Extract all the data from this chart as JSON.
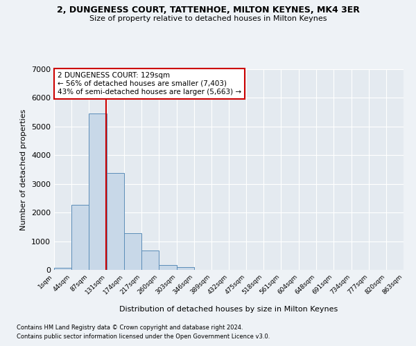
{
  "title1": "2, DUNGENESS COURT, TATTENHOE, MILTON KEYNES, MK4 3ER",
  "title2": "Size of property relative to detached houses in Milton Keynes",
  "xlabel": "Distribution of detached houses by size in Milton Keynes",
  "ylabel": "Number of detached properties",
  "footnote1": "Contains HM Land Registry data © Crown copyright and database right 2024.",
  "footnote2": "Contains public sector information licensed under the Open Government Licence v3.0.",
  "annotation_line1": "2 DUNGENESS COURT: 129sqm",
  "annotation_line2": "← 56% of detached houses are smaller (7,403)",
  "annotation_line3": "43% of semi-detached houses are larger (5,663) →",
  "bar_color": "#c8d8e8",
  "bar_edge_color": "#5b8db8",
  "vline_color": "#cc0000",
  "vline_x": 129,
  "bin_edges": [
    1,
    44,
    87,
    131,
    174,
    217,
    260,
    303,
    346,
    389,
    432,
    475,
    518,
    561,
    604,
    648,
    691,
    734,
    777,
    820,
    863
  ],
  "bar_heights": [
    75,
    2270,
    5450,
    3380,
    1290,
    680,
    160,
    95,
    0,
    0,
    0,
    0,
    0,
    0,
    0,
    0,
    0,
    0,
    0,
    0
  ],
  "ylim": [
    0,
    7000
  ],
  "yticks": [
    0,
    1000,
    2000,
    3000,
    4000,
    5000,
    6000,
    7000
  ],
  "bg_color": "#eef2f6",
  "plot_bg_color": "#e4eaf0",
  "grid_color": "#ffffff",
  "annotation_box_color": "#ffffff",
  "annotation_box_edge": "#cc0000"
}
